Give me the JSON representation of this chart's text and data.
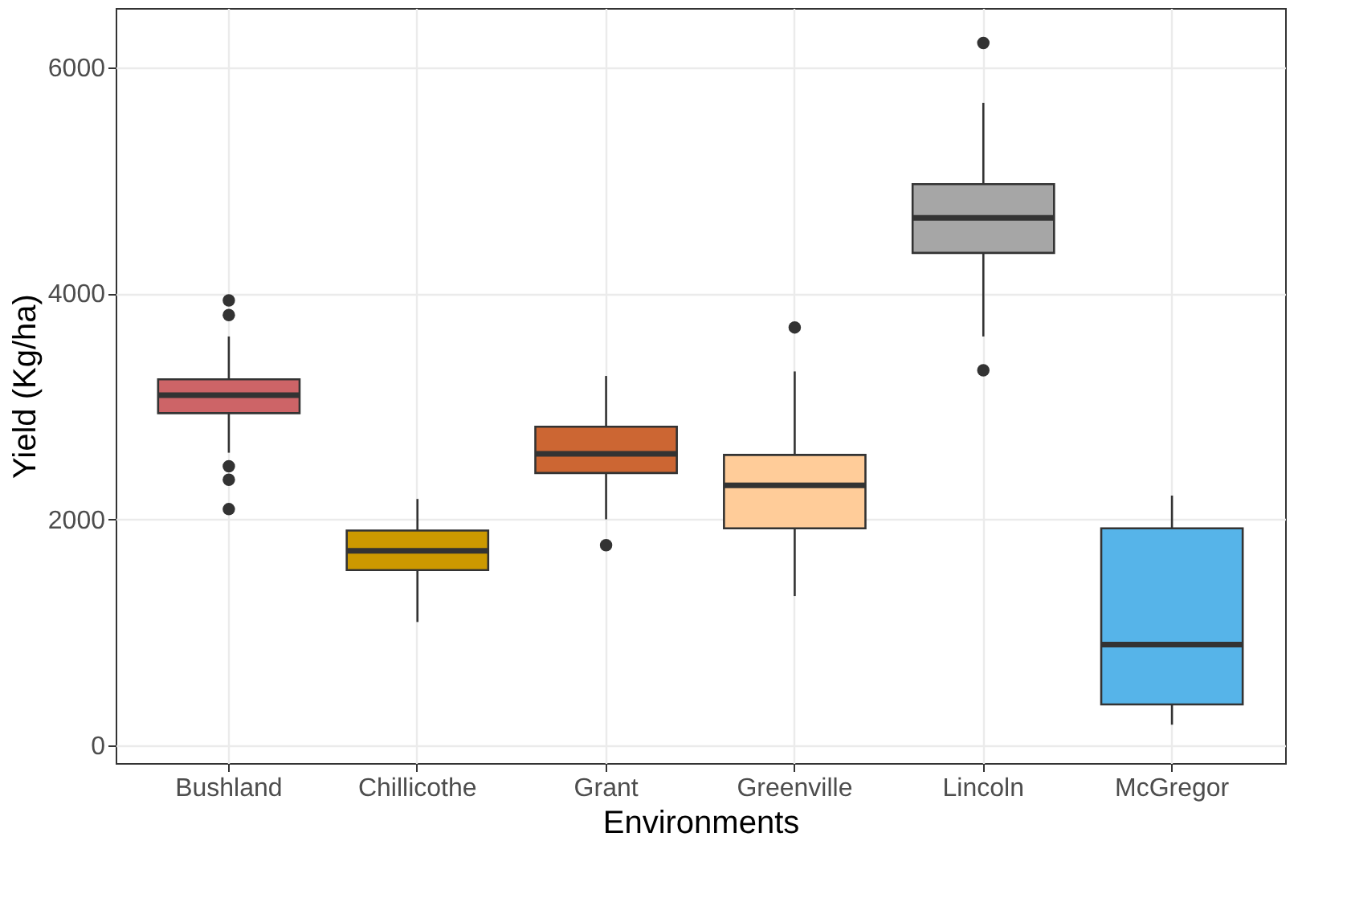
{
  "chart_data": {
    "type": "box",
    "xlabel": "Environments",
    "ylabel": "Yield (Kg/ha)",
    "categories": [
      "Bushland",
      "Chillicothe",
      "Grant",
      "Greenville",
      "Lincoln",
      "McGregor"
    ],
    "colors": [
      "#cd6467",
      "#cc9900",
      "#cc6633",
      "#ffcc99",
      "#a6a6a6",
      "#56b4e9"
    ],
    "boxes": [
      {
        "low": 2590,
        "q1": 2940,
        "median": 3100,
        "q3": 3240,
        "high": 3620,
        "outliers": [
          3940,
          3810,
          2470,
          2350,
          2090
        ]
      },
      {
        "low": 1090,
        "q1": 1550,
        "median": 1720,
        "q3": 1900,
        "high": 2180
      },
      {
        "low": 2000,
        "q1": 2410,
        "median": 2580,
        "q3": 2820,
        "high": 3270,
        "outliers": [
          1770
        ]
      },
      {
        "low": 1320,
        "q1": 1920,
        "median": 2300,
        "q3": 2570,
        "high": 3310,
        "outliers": [
          3700
        ]
      },
      {
        "low": 3620,
        "q1": 4360,
        "median": 4670,
        "q3": 4970,
        "high": 5690,
        "outliers": [
          6220,
          3320
        ]
      },
      {
        "low": 180,
        "q1": 360,
        "median": 890,
        "q3": 1920,
        "high": 2210
      }
    ],
    "ylim": [
      -160,
      6530
    ],
    "yticks": [
      0,
      2000,
      4000,
      6000
    ],
    "grid": true
  }
}
